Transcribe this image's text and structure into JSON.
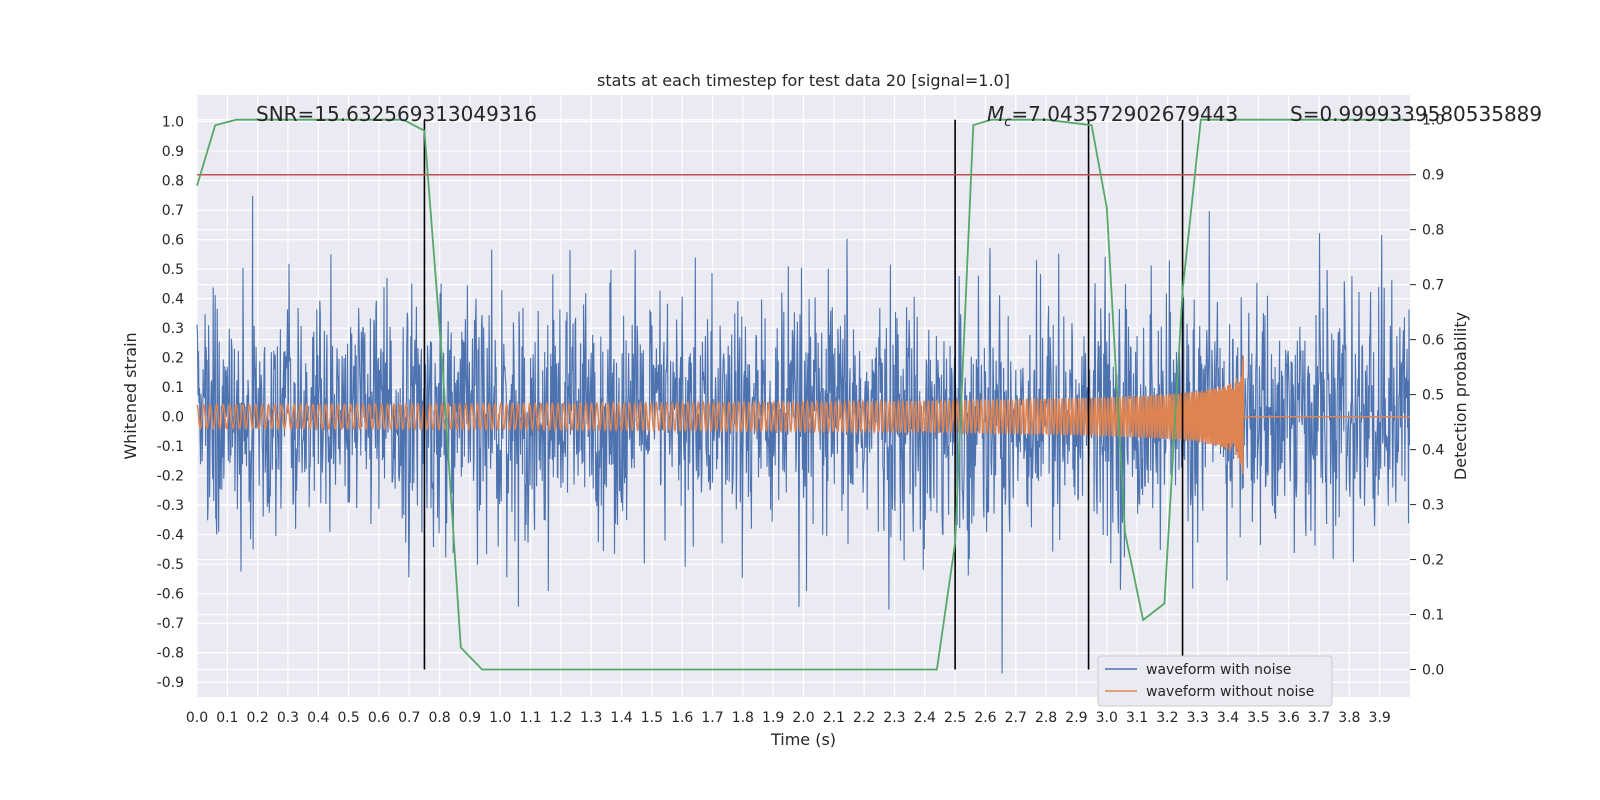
{
  "chart_data": {
    "type": "line",
    "title": "stats at each timestep for test data 20 [signal=1.0]",
    "xlabel": "Time (s)",
    "ylabel": "Whitened strain",
    "ylabel_right": "Detection probability",
    "xlim": [
      0.0,
      4.0
    ],
    "ylim": [
      -0.95,
      1.09
    ],
    "ylim_right": [
      -0.05,
      1.045
    ],
    "x_ticks": [
      "0.0",
      "0.1",
      "0.2",
      "0.3",
      "0.4",
      "0.5",
      "0.6",
      "0.7",
      "0.8",
      "0.9",
      "1.0",
      "1.1",
      "1.2",
      "1.3",
      "1.4",
      "1.5",
      "1.6",
      "1.7",
      "1.8",
      "1.9",
      "2.0",
      "2.1",
      "2.2",
      "2.3",
      "2.4",
      "2.5",
      "2.6",
      "2.7",
      "2.8",
      "2.9",
      "3.0",
      "3.1",
      "3.2",
      "3.3",
      "3.4",
      "3.5",
      "3.6",
      "3.7",
      "3.8",
      "3.9"
    ],
    "y_ticks": [
      "-0.9",
      "-0.8",
      "-0.7",
      "-0.6",
      "-0.5",
      "-0.4",
      "-0.3",
      "-0.2",
      "-0.1",
      "0.0",
      "0.1",
      "0.2",
      "0.3",
      "0.4",
      "0.5",
      "0.6",
      "0.7",
      "0.8",
      "0.9",
      "1.0"
    ],
    "y_ticks_right": [
      "0.0",
      "0.1",
      "0.2",
      "0.3",
      "0.4",
      "0.5",
      "0.6",
      "0.7",
      "0.8",
      "0.9",
      "1.0"
    ],
    "grid": true,
    "legend_position": "lower-right",
    "annotations": {
      "snr": "SNR=15.632569313049316",
      "mc_symbol": "M",
      "mc_sub": "c",
      "mc_value": "=7.043572902679443",
      "s": "S=0.9999339580535889"
    },
    "series": [
      {
        "name": "waveform with noise",
        "color": "#4c72b0",
        "description_values": "noisy strain, approx ±0.3 typical, spikes to ~±0.9"
      },
      {
        "name": "waveform without noise",
        "color": "#dd8452",
        "chirp_start_amplitude": 0.04,
        "chirp_peak_time": 3.45,
        "chirp_peak_amplitude": 0.44
      }
    ],
    "detection_probability": {
      "color": "#55a868",
      "x": [
        0.0,
        0.06,
        0.13,
        0.2,
        0.4,
        0.6,
        0.68,
        0.75,
        0.81,
        0.87,
        0.94,
        1.0,
        1.5,
        2.0,
        2.3,
        2.37,
        2.44,
        2.5,
        2.56,
        2.62,
        2.7,
        2.8,
        2.95,
        3.0,
        3.06,
        3.12,
        3.19,
        3.25,
        3.31,
        3.4,
        3.6,
        3.8,
        4.0
      ],
      "y": [
        0.88,
        0.99,
        1.0,
        1.0,
        1.0,
        1.0,
        1.0,
        0.98,
        0.55,
        0.04,
        0.0,
        0.0,
        0.0,
        0.0,
        0.0,
        0.0,
        0.0,
        0.23,
        0.99,
        1.0,
        1.0,
        1.0,
        0.99,
        0.84,
        0.25,
        0.09,
        0.12,
        0.69,
        1.0,
        1.0,
        1.0,
        1.0,
        1.0
      ]
    },
    "threshold": {
      "color": "#c44e52",
      "value_right_axis": 0.9
    },
    "vertical_lines": {
      "color": "#000000",
      "x": [
        0.75,
        2.5,
        2.94,
        3.25
      ]
    },
    "legend": [
      "waveform with noise",
      "waveform without noise"
    ]
  }
}
